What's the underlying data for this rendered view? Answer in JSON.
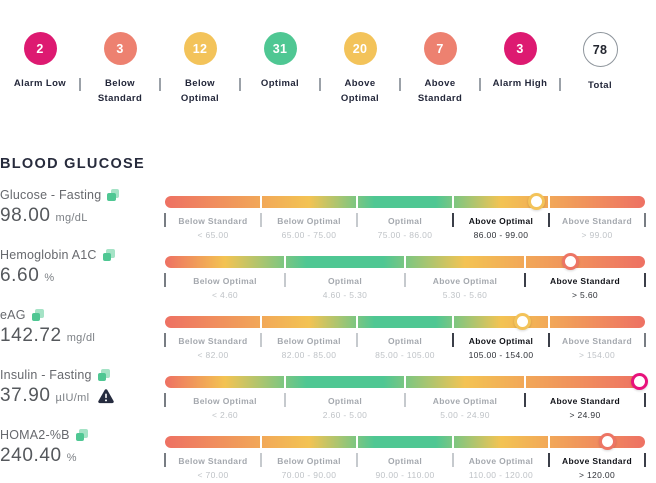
{
  "colors": {
    "magenta": "#DD1A71",
    "salmon": "#ED8170",
    "yellow": "#F3C35A",
    "green": "#4FC793",
    "bar_red": "#EE7163",
    "bar_yellow": "#F3C353",
    "bar_green": "#4FC793",
    "marker_yellow": "#F3C35A",
    "marker_salmon": "#ED7565",
    "marker_magenta": "#E8127C",
    "dark_text": "#272B3C"
  },
  "summary": {
    "items": [
      {
        "count": "2",
        "label": "Alarm Low",
        "color": "magenta",
        "outlined": false
      },
      {
        "count": "3",
        "label": "Below Standard",
        "color": "salmon",
        "outlined": false
      },
      {
        "count": "12",
        "label": "Below Optimal",
        "color": "yellow",
        "outlined": false
      },
      {
        "count": "31",
        "label": "Optimal",
        "color": "green",
        "outlined": false
      },
      {
        "count": "20",
        "label": "Above Optimal",
        "color": "yellow",
        "outlined": false
      },
      {
        "count": "7",
        "label": "Above Standard",
        "color": "salmon",
        "outlined": false
      },
      {
        "count": "3",
        "label": "Alarm High",
        "color": "magenta",
        "outlined": false
      },
      {
        "count": "78",
        "label": "Total",
        "color": "white",
        "outlined": true
      }
    ]
  },
  "section": {
    "title": "BLOOD GLUCOSE"
  },
  "metrics": [
    {
      "name": "Glucose - Fasting",
      "value": "98.00",
      "unit": "mg/dL",
      "warning": false,
      "optimal_index": 2,
      "active_index": 3,
      "marker_pct": 77.5,
      "marker_color": "marker_yellow",
      "zones": [
        {
          "label": "Below Standard",
          "range": "< 65.00"
        },
        {
          "label": "Below Optimal",
          "range": "65.00 - 75.00"
        },
        {
          "label": "Optimal",
          "range": "75.00 - 86.00"
        },
        {
          "label": "Above Optimal",
          "range": "86.00 - 99.00"
        },
        {
          "label": "Above Standard",
          "range": "> 99.00"
        }
      ]
    },
    {
      "name": "Hemoglobin A1C",
      "value": "6.60",
      "unit": "%",
      "warning": false,
      "optimal_index": 1,
      "active_index": 3,
      "marker_pct": 84.5,
      "marker_color": "marker_salmon",
      "zones": [
        {
          "label": "Below Optimal",
          "range": "< 4.60"
        },
        {
          "label": "Optimal",
          "range": "4.60 - 5.30"
        },
        {
          "label": "Above Optimal",
          "range": "5.30 - 5.60"
        },
        {
          "label": "Above Standard",
          "range": "> 5.60"
        }
      ]
    },
    {
      "name": "eAG",
      "value": "142.72",
      "unit": "mg/dl",
      "warning": false,
      "optimal_index": 2,
      "active_index": 3,
      "marker_pct": 74.5,
      "marker_color": "marker_yellow",
      "zones": [
        {
          "label": "Below Standard",
          "range": "< 82.00"
        },
        {
          "label": "Below Optimal",
          "range": "82.00 - 85.00"
        },
        {
          "label": "Optimal",
          "range": "85.00 - 105.00"
        },
        {
          "label": "Above Optimal",
          "range": "105.00 - 154.00"
        },
        {
          "label": "Above Standard",
          "range": "> 154.00"
        }
      ]
    },
    {
      "name": "Insulin - Fasting",
      "value": "37.90",
      "unit": "µIU/ml",
      "warning": true,
      "optimal_index": 1,
      "active_index": 3,
      "marker_pct": 99,
      "marker_color": "marker_magenta",
      "zones": [
        {
          "label": "Below Optimal",
          "range": "< 2.60"
        },
        {
          "label": "Optimal",
          "range": "2.60 - 5.00"
        },
        {
          "label": "Above Optimal",
          "range": "5.00 - 24.90"
        },
        {
          "label": "Above Standard",
          "range": "> 24.90"
        }
      ]
    },
    {
      "name": "HOMA2-%B",
      "value": "240.40",
      "unit": "%",
      "warning": false,
      "optimal_index": 2,
      "active_index": 4,
      "marker_pct": 92.3,
      "marker_color": "marker_salmon",
      "zones": [
        {
          "label": "Below Standard",
          "range": "< 70.00"
        },
        {
          "label": "Below Optimal",
          "range": "70.00 - 90.00"
        },
        {
          "label": "Optimal",
          "range": "90.00 - 110.00"
        },
        {
          "label": "Above Optimal",
          "range": "110.00 - 120.00"
        },
        {
          "label": "Above Standard",
          "range": "> 120.00"
        }
      ]
    }
  ]
}
